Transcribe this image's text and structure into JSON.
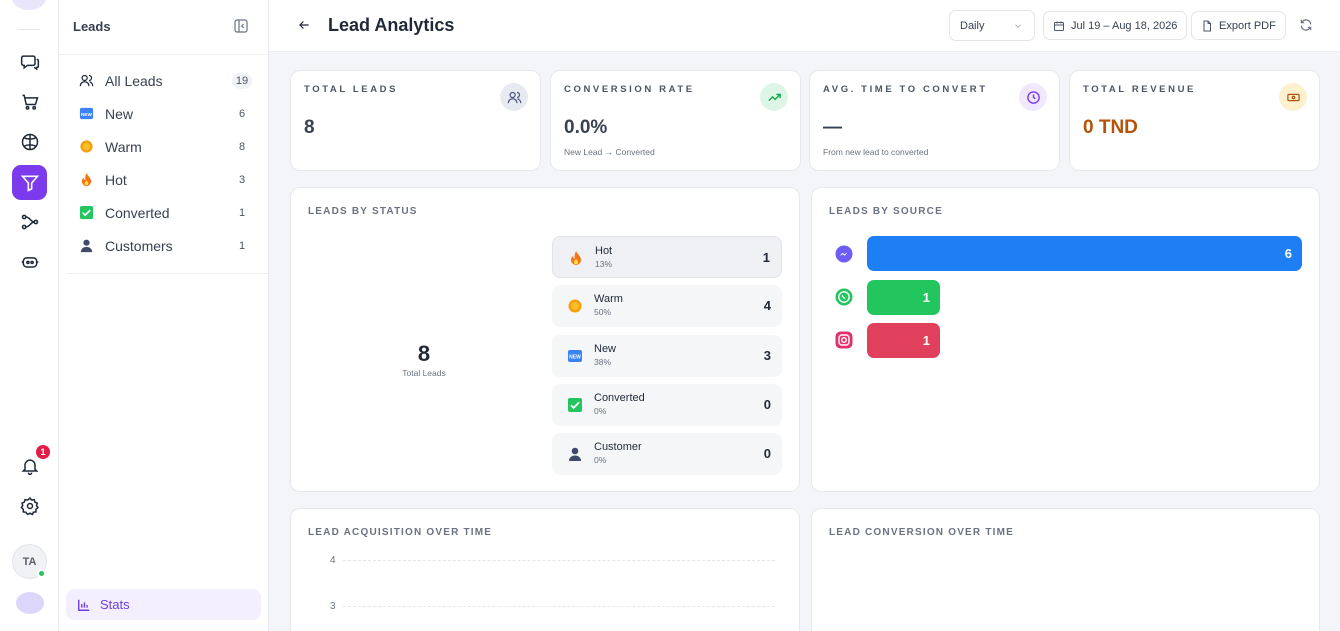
{
  "rail": {
    "notification_count": "1",
    "avatar_initials": "TA"
  },
  "sidebar": {
    "title": "Leads",
    "items": [
      {
        "label": "All Leads",
        "count": "19"
      },
      {
        "label": "New",
        "count": "6"
      },
      {
        "label": "Warm",
        "count": "8"
      },
      {
        "label": "Hot",
        "count": "3"
      },
      {
        "label": "Converted",
        "count": "1"
      },
      {
        "label": "Customers",
        "count": "1"
      }
    ],
    "stats_label": "Stats"
  },
  "topbar": {
    "title": "Lead Analytics",
    "period": "Daily",
    "date_range": "Jul 19 – Aug 18, 2026",
    "export_label": "Export PDF"
  },
  "stats": [
    {
      "label": "TOTAL LEADS",
      "value": "8",
      "sub": "",
      "icon": "users-icon",
      "color": "#374151"
    },
    {
      "label": "CONVERSION RATE",
      "value": "0.0%",
      "sub": "New Lead → Converted",
      "icon": "trending-up-icon",
      "color": "#374151"
    },
    {
      "label": "AVG. TIME TO CONVERT",
      "value": "—",
      "sub": "From new lead to converted",
      "icon": "clock-icon",
      "color": "#374151"
    },
    {
      "label": "TOTAL REVENUE",
      "value": "0 TND",
      "sub": "",
      "icon": "money-icon",
      "color": "#b45309"
    }
  ],
  "status_panel": {
    "title": "LEADS BY STATUS",
    "total": "8",
    "total_caption": "Total Leads",
    "rows": [
      {
        "name": "Hot",
        "pct": "13%",
        "count": "1",
        "icon": "fire-icon"
      },
      {
        "name": "Warm",
        "pct": "50%",
        "count": "4",
        "icon": "sun-icon"
      },
      {
        "name": "New",
        "pct": "38%",
        "count": "3",
        "icon": "new-badge-icon"
      },
      {
        "name": "Converted",
        "pct": "0%",
        "count": "0",
        "icon": "check-box-icon"
      },
      {
        "name": "Customer",
        "pct": "0%",
        "count": "0",
        "icon": "person-icon"
      }
    ]
  },
  "source_panel": {
    "title": "LEADS BY SOURCE",
    "sources": [
      {
        "icon": "messenger-icon",
        "count": "6",
        "share": 1.0,
        "color": "#1e7ff5"
      },
      {
        "icon": "whatsapp-icon",
        "count": "1",
        "share": 0.167,
        "color": "#22c55e"
      },
      {
        "icon": "instagram-icon",
        "count": "1",
        "share": 0.167,
        "color": "#e0405c"
      }
    ]
  },
  "acquisition_panel": {
    "title": "LEAD ACQUISITION OVER TIME",
    "y_ticks": [
      "4",
      "3"
    ]
  },
  "conversion_panel": {
    "title": "LEAD CONVERSION OVER TIME"
  }
}
